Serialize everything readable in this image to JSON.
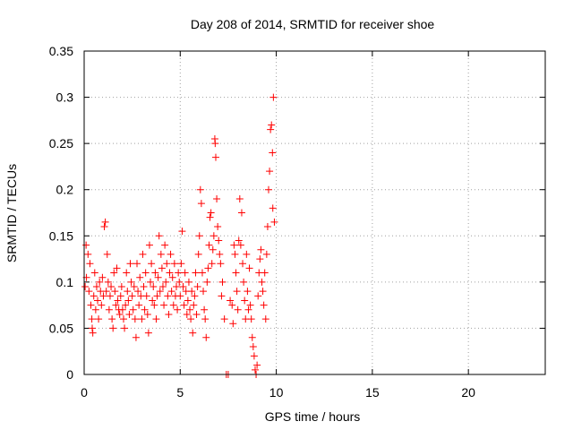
{
  "chart_data": {
    "type": "scatter",
    "title": "Day 208 of 2014, SRMTID for receiver shoe",
    "xlabel": "GPS time / hours",
    "ylabel": "SRMTID / TECUs",
    "xlim": [
      0,
      24
    ],
    "ylim": [
      0,
      0.35
    ],
    "xticks": [
      0,
      5,
      10,
      15,
      20
    ],
    "yticks": [
      0,
      0.05,
      0.1,
      0.15,
      0.2,
      0.25,
      0.3,
      0.35
    ],
    "grid": true,
    "marker": "+",
    "color": "#ff0000",
    "series": [
      {
        "name": "SRMTID",
        "points": [
          [
            0.05,
            0.095
          ],
          [
            0.1,
            0.14
          ],
          [
            0.12,
            0.105
          ],
          [
            0.2,
            0.13
          ],
          [
            0.25,
            0.09
          ],
          [
            0.3,
            0.12
          ],
          [
            0.35,
            0.075
          ],
          [
            0.4,
            0.06
          ],
          [
            0.42,
            0.05
          ],
          [
            0.45,
            0.045
          ],
          [
            0.5,
            0.085
          ],
          [
            0.55,
            0.11
          ],
          [
            0.6,
            0.07
          ],
          [
            0.65,
            0.095
          ],
          [
            0.7,
            0.08
          ],
          [
            0.75,
            0.06
          ],
          [
            0.8,
            0.1
          ],
          [
            0.85,
            0.09
          ],
          [
            0.9,
            0.075
          ],
          [
            0.95,
            0.105
          ],
          [
            1.0,
            0.085
          ],
          [
            1.05,
            0.16
          ],
          [
            1.1,
            0.165
          ],
          [
            1.15,
            0.09
          ],
          [
            1.2,
            0.13
          ],
          [
            1.25,
            0.1
          ],
          [
            1.3,
            0.07
          ],
          [
            1.35,
            0.085
          ],
          [
            1.4,
            0.095
          ],
          [
            1.45,
            0.06
          ],
          [
            1.5,
            0.05
          ],
          [
            1.55,
            0.11
          ],
          [
            1.6,
            0.09
          ],
          [
            1.65,
            0.075
          ],
          [
            1.7,
            0.115
          ],
          [
            1.75,
            0.08
          ],
          [
            1.8,
            0.07
          ],
          [
            1.85,
            0.065
          ],
          [
            1.9,
            0.085
          ],
          [
            1.95,
            0.095
          ],
          [
            2.0,
            0.07
          ],
          [
            2.05,
            0.06
          ],
          [
            2.1,
            0.05
          ],
          [
            2.15,
            0.075
          ],
          [
            2.2,
            0.11
          ],
          [
            2.25,
            0.09
          ],
          [
            2.3,
            0.08
          ],
          [
            2.35,
            0.065
          ],
          [
            2.4,
            0.12
          ],
          [
            2.45,
            0.1
          ],
          [
            2.5,
            0.085
          ],
          [
            2.55,
            0.07
          ],
          [
            2.6,
            0.095
          ],
          [
            2.65,
            0.06
          ],
          [
            2.7,
            0.04
          ],
          [
            2.75,
            0.12
          ],
          [
            2.8,
            0.09
          ],
          [
            2.85,
            0.075
          ],
          [
            2.9,
            0.105
          ],
          [
            2.95,
            0.085
          ],
          [
            3.0,
            0.06
          ],
          [
            3.05,
            0.13
          ],
          [
            3.1,
            0.095
          ],
          [
            3.15,
            0.07
          ],
          [
            3.2,
            0.11
          ],
          [
            3.25,
            0.085
          ],
          [
            3.3,
            0.065
          ],
          [
            3.35,
            0.045
          ],
          [
            3.4,
            0.14
          ],
          [
            3.45,
            0.1
          ],
          [
            3.5,
            0.12
          ],
          [
            3.55,
            0.08
          ],
          [
            3.6,
            0.095
          ],
          [
            3.65,
            0.075
          ],
          [
            3.7,
            0.11
          ],
          [
            3.75,
            0.06
          ],
          [
            3.8,
            0.085
          ],
          [
            3.85,
            0.105
          ],
          [
            3.9,
            0.15
          ],
          [
            3.95,
            0.09
          ],
          [
            4.0,
            0.13
          ],
          [
            4.05,
            0.115
          ],
          [
            4.1,
            0.095
          ],
          [
            4.15,
            0.075
          ],
          [
            4.2,
            0.14
          ],
          [
            4.25,
            0.1
          ],
          [
            4.3,
            0.12
          ],
          [
            4.35,
            0.085
          ],
          [
            4.4,
            0.065
          ],
          [
            4.45,
            0.11
          ],
          [
            4.5,
            0.13
          ],
          [
            4.55,
            0.09
          ],
          [
            4.6,
            0.105
          ],
          [
            4.65,
            0.075
          ],
          [
            4.7,
            0.12
          ],
          [
            4.75,
            0.085
          ],
          [
            4.8,
            0.095
          ],
          [
            4.85,
            0.07
          ],
          [
            4.9,
            0.11
          ],
          [
            4.95,
            0.1
          ],
          [
            5.0,
            0.085
          ],
          [
            5.05,
            0.12
          ],
          [
            5.1,
            0.155
          ],
          [
            5.15,
            0.095
          ],
          [
            5.2,
            0.075
          ],
          [
            5.25,
            0.11
          ],
          [
            5.3,
            0.09
          ],
          [
            5.35,
            0.065
          ],
          [
            5.4,
            0.08
          ],
          [
            5.45,
            0.1
          ],
          [
            5.5,
            0.07
          ],
          [
            5.55,
            0.06
          ],
          [
            5.6,
            0.09
          ],
          [
            5.65,
            0.045
          ],
          [
            5.7,
            0.075
          ],
          [
            5.75,
            0.085
          ],
          [
            5.8,
            0.11
          ],
          [
            5.85,
            0.065
          ],
          [
            5.9,
            0.095
          ],
          [
            5.95,
            0.13
          ],
          [
            6.0,
            0.15
          ],
          [
            6.05,
            0.2
          ],
          [
            6.1,
            0.185
          ],
          [
            6.15,
            0.11
          ],
          [
            6.2,
            0.09
          ],
          [
            6.25,
            0.07
          ],
          [
            6.3,
            0.06
          ],
          [
            6.35,
            0.04
          ],
          [
            6.4,
            0.1
          ],
          [
            6.45,
            0.115
          ],
          [
            6.5,
            0.14
          ],
          [
            6.55,
            0.17
          ],
          [
            6.6,
            0.175
          ],
          [
            6.65,
            0.12
          ],
          [
            6.7,
            0.135
          ],
          [
            6.75,
            0.15
          ],
          [
            6.8,
            0.255
          ],
          [
            6.82,
            0.25
          ],
          [
            6.85,
            0.235
          ],
          [
            6.9,
            0.19
          ],
          [
            6.95,
            0.16
          ],
          [
            7.0,
            0.145
          ],
          [
            7.05,
            0.13
          ],
          [
            7.1,
            0.12
          ],
          [
            7.15,
            0.085
          ],
          [
            7.2,
            0.1
          ],
          [
            7.3,
            0.06
          ],
          [
            7.4,
            0.0
          ],
          [
            7.5,
            0.0
          ],
          [
            7.6,
            0.08
          ],
          [
            7.7,
            0.075
          ],
          [
            7.75,
            0.055
          ],
          [
            7.8,
            0.14
          ],
          [
            7.85,
            0.13
          ],
          [
            7.9,
            0.11
          ],
          [
            7.95,
            0.09
          ],
          [
            8.0,
            0.07
          ],
          [
            8.05,
            0.145
          ],
          [
            8.1,
            0.19
          ],
          [
            8.15,
            0.14
          ],
          [
            8.2,
            0.175
          ],
          [
            8.25,
            0.12
          ],
          [
            8.3,
            0.1
          ],
          [
            8.35,
            0.08
          ],
          [
            8.4,
            0.06
          ],
          [
            8.45,
            0.13
          ],
          [
            8.5,
            0.09
          ],
          [
            8.55,
            0.07
          ],
          [
            8.6,
            0.115
          ],
          [
            8.65,
            0.075
          ],
          [
            8.7,
            0.06
          ],
          [
            8.75,
            0.04
          ],
          [
            8.8,
            0.03
          ],
          [
            8.85,
            0.02
          ],
          [
            8.9,
            0.005
          ],
          [
            8.95,
            0.0
          ],
          [
            9.0,
            0.01
          ],
          [
            9.05,
            0.085
          ],
          [
            9.1,
            0.11
          ],
          [
            9.15,
            0.125
          ],
          [
            9.2,
            0.135
          ],
          [
            9.25,
            0.1
          ],
          [
            9.3,
            0.09
          ],
          [
            9.35,
            0.075
          ],
          [
            9.4,
            0.11
          ],
          [
            9.45,
            0.06
          ],
          [
            9.5,
            0.13
          ],
          [
            9.55,
            0.16
          ],
          [
            9.6,
            0.2
          ],
          [
            9.65,
            0.22
          ],
          [
            9.7,
            0.265
          ],
          [
            9.75,
            0.27
          ],
          [
            9.8,
            0.24
          ],
          [
            9.82,
            0.18
          ],
          [
            9.85,
            0.3
          ],
          [
            9.9,
            0.165
          ]
        ]
      }
    ]
  }
}
